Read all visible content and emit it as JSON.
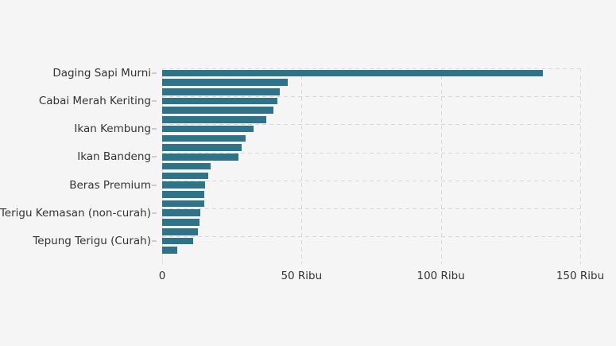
{
  "page": {
    "background_color": "#f5f5f5",
    "text_color": "#333333",
    "grid_color": "#d7d7d7"
  },
  "chart_data": {
    "type": "bar",
    "orientation": "horizontal",
    "title": "",
    "xlabel": "",
    "ylabel": "",
    "unit": "Ribu",
    "bar_color": "#2f7389",
    "grid": "dashed",
    "legend": "none",
    "xlim": [
      0,
      150
    ],
    "x_ticks": [
      {
        "value": 0,
        "label": "0"
      },
      {
        "value": 50,
        "label": "50 Ribu"
      },
      {
        "value": 100,
        "label": "100 Ribu"
      },
      {
        "value": 150,
        "label": "150 Ribu"
      }
    ],
    "categories": [
      "Daging Sapi Murni",
      "",
      "",
      "Cabai Merah Keriting",
      "",
      "",
      "Ikan Kembung",
      "",
      "",
      "Ikan Bandeng",
      "",
      "",
      "Beras Premium",
      "",
      "",
      "Tepung Terigu Kemasan (non-curah)",
      "",
      "",
      "Tepung Terigu (Curah)",
      ""
    ],
    "values": [
      136.7,
      45.0,
      42.3,
      41.4,
      40.0,
      37.3,
      32.8,
      29.9,
      28.5,
      27.4,
      17.4,
      16.5,
      15.3,
      15.2,
      15.1,
      13.7,
      13.3,
      12.8,
      11.1,
      5.4
    ]
  }
}
